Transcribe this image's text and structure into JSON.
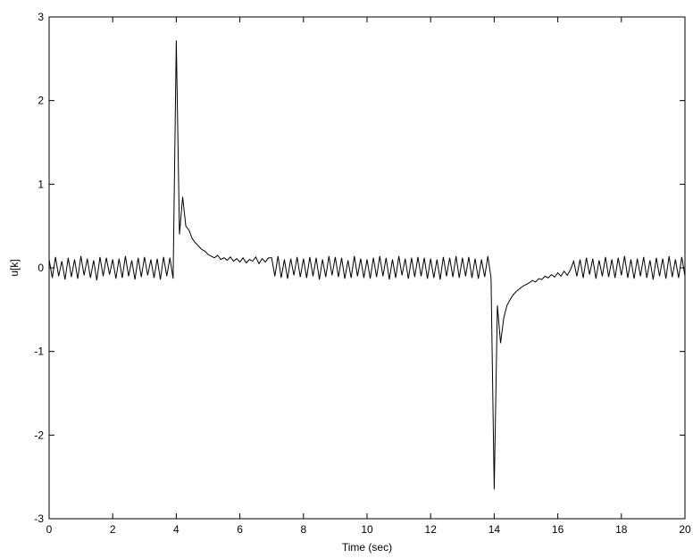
{
  "chart_data": {
    "type": "line",
    "xlabel": "Time (sec)",
    "ylabel": "u[k]",
    "color": "#000000",
    "xlim": [
      0,
      20
    ],
    "ylim": [
      -3,
      3
    ],
    "xticks": [
      0,
      2,
      4,
      6,
      8,
      10,
      12,
      14,
      16,
      18,
      20
    ],
    "yticks": [
      -3,
      -2,
      -1,
      0,
      1,
      2,
      3
    ],
    "x": [
      0,
      0.1,
      0.2,
      0.3,
      0.4,
      0.5,
      0.6,
      0.7,
      0.8,
      0.9,
      1,
      1.1,
      1.2,
      1.3,
      1.4,
      1.5,
      1.6,
      1.7,
      1.8,
      1.9,
      2,
      2.1,
      2.2,
      2.3,
      2.4,
      2.5,
      2.6,
      2.7,
      2.8,
      2.9,
      3,
      3.1,
      3.2,
      3.3,
      3.4,
      3.5,
      3.6,
      3.7,
      3.8,
      3.9,
      4,
      4.1,
      4.2,
      4.3,
      4.4,
      4.5,
      4.6,
      4.7,
      4.8,
      4.9,
      5,
      5.1,
      5.2,
      5.3,
      5.4,
      5.5,
      5.6,
      5.7,
      5.8,
      5.9,
      6,
      6.1,
      6.2,
      6.3,
      6.4,
      6.5,
      6.6,
      6.7,
      6.8,
      6.9,
      7,
      7.1,
      7.2,
      7.3,
      7.4,
      7.5,
      7.6,
      7.7,
      7.8,
      7.9,
      8,
      8.1,
      8.2,
      8.3,
      8.4,
      8.5,
      8.6,
      8.7,
      8.8,
      8.9,
      9,
      9.1,
      9.2,
      9.3,
      9.4,
      9.5,
      9.6,
      9.7,
      9.8,
      9.9,
      10,
      10.1,
      10.2,
      10.3,
      10.4,
      10.5,
      10.6,
      10.7,
      10.8,
      10.9,
      11,
      11.1,
      11.2,
      11.3,
      11.4,
      11.5,
      11.6,
      11.7,
      11.8,
      11.9,
      12,
      12.1,
      12.2,
      12.3,
      12.4,
      12.5,
      12.6,
      12.7,
      12.8,
      12.9,
      13,
      13.1,
      13.2,
      13.3,
      13.4,
      13.5,
      13.6,
      13.7,
      13.8,
      13.9,
      14,
      14.1,
      14.2,
      14.3,
      14.4,
      14.5,
      14.6,
      14.7,
      14.8,
      14.9,
      15,
      15.1,
      15.2,
      15.3,
      15.4,
      15.5,
      15.6,
      15.7,
      15.8,
      15.9,
      16,
      16.1,
      16.2,
      16.3,
      16.4,
      16.5,
      16.6,
      16.7,
      16.8,
      16.9,
      17,
      17.1,
      17.2,
      17.3,
      17.4,
      17.5,
      17.6,
      17.7,
      17.8,
      17.9,
      18,
      18.1,
      18.2,
      18.3,
      18.4,
      18.5,
      18.6,
      18.7,
      18.8,
      18.9,
      19,
      19.1,
      19.2,
      19.3,
      19.4,
      19.5,
      19.6,
      19.7,
      19.8,
      19.9,
      20
    ],
    "values": [
      0.1,
      -0.12,
      0.13,
      -0.1,
      0.08,
      -0.14,
      0.12,
      -0.11,
      0.1,
      -0.13,
      0.14,
      -0.09,
      0.11,
      -0.12,
      0.09,
      -0.15,
      0.13,
      -0.1,
      0.12,
      -0.08,
      0.1,
      -0.13,
      0.11,
      -0.12,
      0.14,
      -0.1,
      0.09,
      -0.14,
      0.12,
      -0.11,
      0.13,
      -0.09,
      0.1,
      -0.12,
      0.11,
      -0.14,
      0.13,
      -0.1,
      0.12,
      -0.13,
      2.72,
      0.4,
      0.85,
      0.5,
      0.45,
      0.35,
      0.3,
      0.26,
      0.22,
      0.2,
      0.16,
      0.14,
      0.12,
      0.15,
      0.1,
      0.12,
      0.09,
      0.13,
      0.08,
      0.11,
      0.07,
      0.12,
      0.06,
      0.1,
      0.08,
      0.13,
      0.05,
      0.11,
      0.07,
      0.12,
      0.12,
      -0.1,
      0.14,
      -0.12,
      0.1,
      -0.13,
      0.11,
      -0.09,
      0.13,
      -0.11,
      0.11,
      -0.12,
      0.13,
      -0.1,
      0.12,
      -0.14,
      0.1,
      -0.11,
      0.14,
      -0.09,
      0.13,
      -0.11,
      0.12,
      -0.13,
      0.09,
      -0.12,
      0.14,
      -0.1,
      0.11,
      -0.12,
      0.1,
      -0.13,
      0.12,
      -0.11,
      0.14,
      -0.1,
      0.12,
      -0.14,
      0.1,
      -0.12,
      0.14,
      -0.09,
      0.11,
      -0.13,
      0.12,
      -0.11,
      0.13,
      -0.1,
      0.12,
      -0.13,
      0.11,
      -0.12,
      0.1,
      -0.14,
      0.13,
      -0.1,
      0.12,
      -0.11,
      0.14,
      -0.12,
      0.12,
      -0.1,
      0.13,
      -0.12,
      0.11,
      -0.13,
      0.1,
      -0.11,
      0.14,
      -0.12,
      -2.65,
      -0.45,
      -0.9,
      -0.6,
      -0.45,
      -0.38,
      -0.32,
      -0.28,
      -0.25,
      -0.22,
      -0.2,
      -0.18,
      -0.15,
      -0.17,
      -0.13,
      -0.14,
      -0.1,
      -0.12,
      -0.08,
      -0.11,
      -0.06,
      -0.1,
      -0.04,
      -0.09,
      -0.02,
      0.08,
      -0.1,
      0.1,
      -0.12,
      0.12,
      -0.08,
      0.11,
      -0.13,
      0.09,
      -0.1,
      0.13,
      -0.11,
      0.1,
      -0.12,
      0.12,
      -0.09,
      0.14,
      -0.12,
      0.1,
      -0.13,
      0.11,
      -0.1,
      0.13,
      -0.12,
      0.09,
      -0.14,
      0.12,
      -0.1,
      0.11,
      -0.13,
      0.14,
      -0.11,
      0.1,
      -0.12,
      0.13,
      -0.1
    ]
  }
}
